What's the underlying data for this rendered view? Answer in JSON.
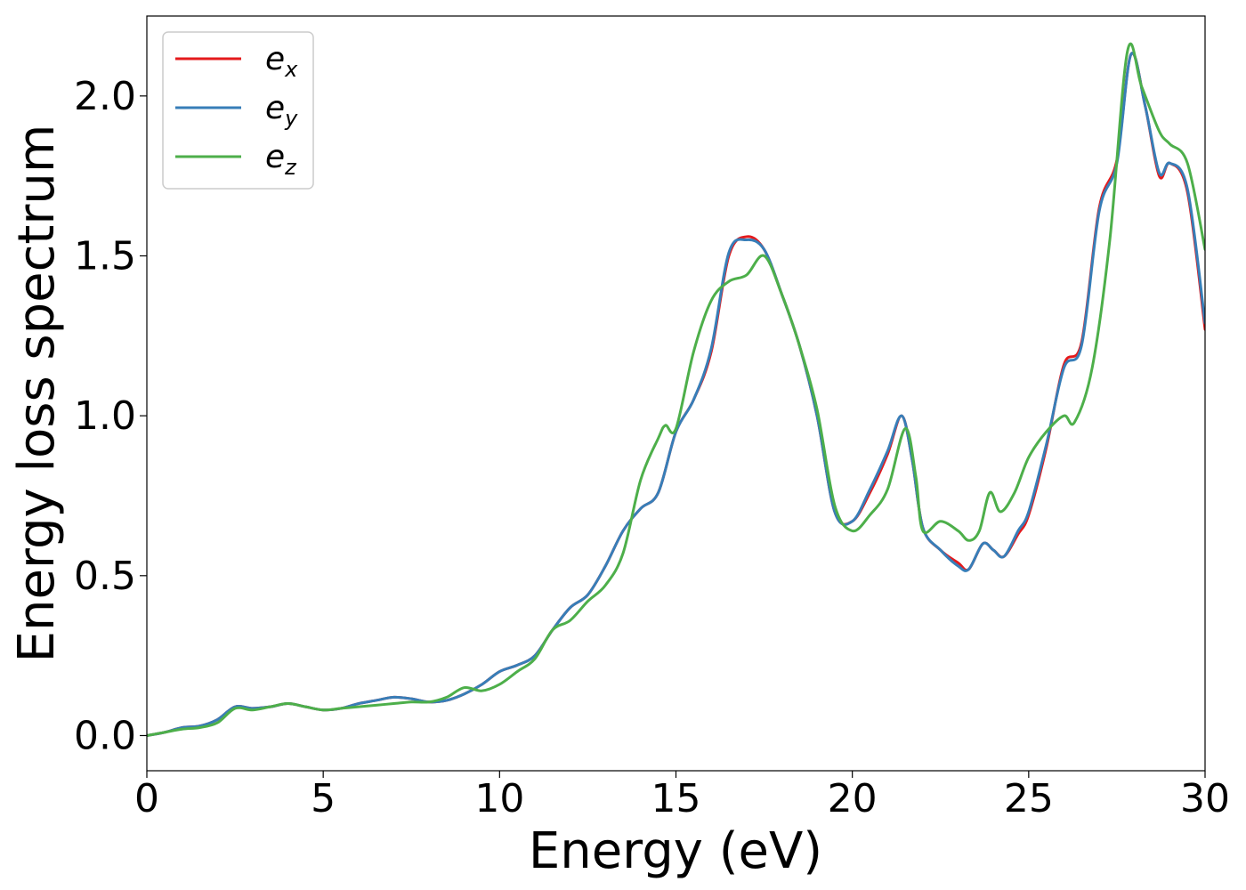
{
  "chart_data": {
    "type": "line",
    "xlabel": "Energy (eV)",
    "ylabel": "Energy loss spectrum",
    "xlim": [
      0,
      30
    ],
    "ylim": [
      -0.11,
      2.25
    ],
    "xticks": [
      0,
      5,
      10,
      15,
      20,
      25,
      30
    ],
    "xtick_labels": [
      "0",
      "5",
      "10",
      "15",
      "20",
      "25",
      "30"
    ],
    "yticks": [
      0.0,
      0.5,
      1.0,
      1.5,
      2.0
    ],
    "ytick_labels": [
      "0.0",
      "0.5",
      "1.0",
      "1.5",
      "2.0"
    ],
    "grid": false,
    "legend_position": "top-left",
    "series": [
      {
        "name": "e_x",
        "legend_base": "e",
        "legend_sub": "x",
        "color": "#e41a1c",
        "x": [
          0,
          0.5,
          1,
          1.5,
          2,
          2.5,
          3,
          3.5,
          4,
          4.5,
          5,
          5.5,
          6,
          6.5,
          7,
          7.5,
          8,
          8.5,
          9,
          9.5,
          10,
          10.5,
          11,
          11.5,
          12,
          12.5,
          13,
          13.5,
          14,
          14.5,
          15,
          15.5,
          16,
          16.5,
          17,
          17.5,
          18,
          18.5,
          19,
          19.5,
          20,
          20.5,
          21,
          21.4,
          21.7,
          22,
          22.5,
          23,
          23.3,
          23.7,
          24,
          24.3,
          24.7,
          25,
          25.5,
          26,
          26.5,
          27,
          27.5,
          27.9,
          28.3,
          28.7,
          29,
          29.5,
          30
        ],
        "y": [
          0.0,
          0.01,
          0.025,
          0.03,
          0.05,
          0.09,
          0.085,
          0.09,
          0.1,
          0.09,
          0.08,
          0.085,
          0.1,
          0.11,
          0.12,
          0.115,
          0.105,
          0.11,
          0.13,
          0.16,
          0.2,
          0.22,
          0.25,
          0.33,
          0.4,
          0.44,
          0.53,
          0.64,
          0.71,
          0.76,
          0.95,
          1.05,
          1.2,
          1.5,
          1.56,
          1.52,
          1.38,
          1.22,
          1.0,
          0.7,
          0.67,
          0.76,
          0.88,
          1.0,
          0.86,
          0.65,
          0.58,
          0.54,
          0.52,
          0.6,
          0.58,
          0.56,
          0.63,
          0.69,
          0.9,
          1.16,
          1.23,
          1.65,
          1.8,
          2.13,
          1.97,
          1.75,
          1.79,
          1.7,
          1.27
        ]
      },
      {
        "name": "e_y",
        "legend_base": "e",
        "legend_sub": "y",
        "color": "#377eb8",
        "x": [
          0,
          0.5,
          1,
          1.5,
          2,
          2.5,
          3,
          3.5,
          4,
          4.5,
          5,
          5.5,
          6,
          6.5,
          7,
          7.5,
          8,
          8.5,
          9,
          9.5,
          10,
          10.5,
          11,
          11.5,
          12,
          12.5,
          13,
          13.5,
          14,
          14.5,
          15,
          15.5,
          16,
          16.5,
          17,
          17.5,
          18,
          18.5,
          19,
          19.5,
          20,
          20.5,
          21,
          21.4,
          21.7,
          22,
          22.5,
          23,
          23.3,
          23.7,
          24,
          24.3,
          24.7,
          25,
          25.5,
          26,
          26.5,
          27,
          27.5,
          27.9,
          28.3,
          28.7,
          29,
          29.5,
          30
        ],
        "y": [
          0.0,
          0.01,
          0.025,
          0.03,
          0.05,
          0.09,
          0.085,
          0.09,
          0.1,
          0.09,
          0.08,
          0.085,
          0.1,
          0.11,
          0.12,
          0.115,
          0.105,
          0.11,
          0.13,
          0.16,
          0.2,
          0.22,
          0.25,
          0.33,
          0.4,
          0.44,
          0.53,
          0.64,
          0.71,
          0.76,
          0.95,
          1.05,
          1.21,
          1.51,
          1.55,
          1.52,
          1.38,
          1.22,
          1.0,
          0.7,
          0.67,
          0.77,
          0.89,
          1.0,
          0.86,
          0.65,
          0.58,
          0.53,
          0.52,
          0.6,
          0.58,
          0.56,
          0.64,
          0.7,
          0.91,
          1.15,
          1.22,
          1.64,
          1.79,
          2.13,
          1.97,
          1.76,
          1.79,
          1.71,
          1.29
        ]
      },
      {
        "name": "e_z",
        "legend_base": "e",
        "legend_sub": "z",
        "color": "#4daf4a",
        "x": [
          0,
          0.5,
          1,
          1.5,
          2,
          2.5,
          3,
          3.5,
          4,
          4.5,
          5,
          5.5,
          6,
          6.5,
          7,
          7.5,
          8,
          8.5,
          9,
          9.5,
          10,
          10.5,
          11,
          11.5,
          12,
          12.5,
          13,
          13.5,
          14,
          14.5,
          14.7,
          15,
          15.5,
          16,
          16.5,
          17,
          17.5,
          18,
          18.5,
          19,
          19.5,
          20,
          20.5,
          21,
          21.5,
          21.8,
          22,
          22.5,
          23,
          23.3,
          23.6,
          23.9,
          24.2,
          24.6,
          25,
          25.5,
          26,
          26.3,
          26.8,
          27.3,
          27.8,
          28.2,
          28.7,
          29,
          29.5,
          30
        ],
        "y": [
          0.0,
          0.01,
          0.02,
          0.025,
          0.04,
          0.085,
          0.08,
          0.09,
          0.1,
          0.09,
          0.08,
          0.085,
          0.09,
          0.095,
          0.1,
          0.105,
          0.105,
          0.12,
          0.15,
          0.14,
          0.16,
          0.2,
          0.24,
          0.33,
          0.36,
          0.42,
          0.47,
          0.57,
          0.8,
          0.93,
          0.97,
          0.96,
          1.2,
          1.36,
          1.42,
          1.44,
          1.5,
          1.38,
          1.22,
          1.02,
          0.72,
          0.64,
          0.69,
          0.77,
          0.96,
          0.81,
          0.64,
          0.67,
          0.64,
          0.61,
          0.64,
          0.76,
          0.7,
          0.76,
          0.87,
          0.95,
          1.0,
          0.98,
          1.15,
          1.55,
          2.14,
          2.03,
          1.89,
          1.85,
          1.79,
          1.52
        ]
      }
    ]
  }
}
